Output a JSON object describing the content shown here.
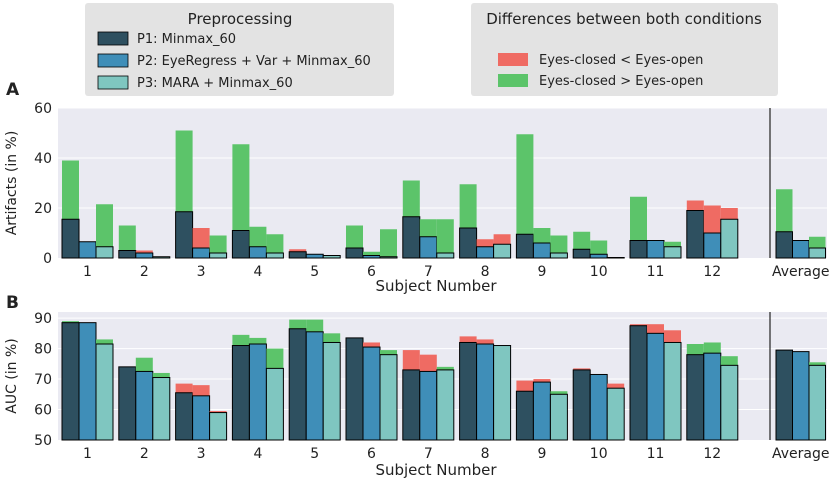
{
  "legend_preprocessing": {
    "title": "Preprocessing",
    "items": [
      {
        "label": "P1:  Minmax_60",
        "color": "#2e5060"
      },
      {
        "label": "P2:  EyeRegress + Var + Minmax_60",
        "color": "#3f8eb8"
      },
      {
        "label": "P3:  MARA + Minmax_60",
        "color": "#7fc6c0"
      }
    ]
  },
  "legend_differences": {
    "title": "Differences between both conditions",
    "items": [
      {
        "label": "Eyes-closed < Eyes-open",
        "color": "#ef6b63"
      },
      {
        "label": "Eyes-closed > Eyes-open",
        "color": "#5cc46a"
      }
    ]
  },
  "chart_data": [
    {
      "type": "bar",
      "panel": "A",
      "ylabel": "Artifacts (in %)",
      "xlabel": "Subject Number",
      "ylim": [
        0,
        60
      ],
      "yticks": [
        0,
        20,
        40,
        60
      ],
      "categories": [
        "1",
        "2",
        "3",
        "4",
        "5",
        "6",
        "7",
        "8",
        "9",
        "10",
        "11",
        "12",
        "Average"
      ],
      "series": [
        {
          "name": "P1",
          "low": [
            15.5,
            3,
            18.5,
            11,
            2.5,
            4,
            16.5,
            12,
            9.5,
            3.5,
            7,
            19
          ],
          "high": [
            39,
            13,
            51,
            45.5,
            3.5,
            13,
            31,
            29.5,
            49.5,
            10.5,
            24.5,
            23
          ],
          "diff": [
            "green",
            "green",
            "green",
            "green",
            "red",
            "green",
            "green",
            "green",
            "green",
            "green",
            "green",
            "red"
          ],
          "avg": [
            10.5,
            27.5,
            "green"
          ]
        },
        {
          "name": "P2",
          "low": [
            6.5,
            2,
            4,
            4.5,
            1.5,
            1,
            8.5,
            4.5,
            6,
            1.5,
            7,
            10
          ],
          "high": [
            6.5,
            3,
            12,
            12.5,
            1.5,
            2.5,
            15.5,
            7.5,
            12,
            7,
            7,
            21
          ],
          "diff": [
            "none",
            "red",
            "red",
            "green",
            "none",
            "green",
            "green",
            "red",
            "green",
            "green",
            "none",
            "red"
          ],
          "avg": [
            7,
            7,
            "none"
          ]
        },
        {
          "name": "P3",
          "low": [
            4.5,
            0.5,
            2,
            2,
            1,
            0.5,
            2,
            5.5,
            2,
            0.2,
            4.5,
            15.5
          ],
          "high": [
            21.5,
            0.5,
            9,
            9.5,
            1,
            11.5,
            15.5,
            9.5,
            9,
            0.2,
            6.5,
            20
          ],
          "diff": [
            "green",
            "none",
            "green",
            "green",
            "none",
            "green",
            "green",
            "red",
            "green",
            "none",
            "green",
            "red"
          ],
          "avg": [
            4,
            8.5,
            "green"
          ]
        }
      ]
    },
    {
      "type": "bar",
      "panel": "B",
      "ylabel": "AUC (in %)",
      "xlabel": "Subject Number",
      "ylim": [
        50,
        92
      ],
      "yticks": [
        50,
        60,
        70,
        80,
        90
      ],
      "categories": [
        "1",
        "2",
        "3",
        "4",
        "5",
        "6",
        "7",
        "8",
        "9",
        "10",
        "11",
        "12",
        "Average"
      ],
      "series": [
        {
          "name": "P1",
          "low": [
            88.5,
            74,
            65.5,
            81,
            86.5,
            83.5,
            73,
            82,
            66,
            73,
            87.5,
            78
          ],
          "high": [
            89,
            74,
            68.5,
            84.5,
            89.5,
            83.5,
            79.5,
            84,
            69.5,
            73.5,
            88,
            81.5
          ],
          "diff": [
            "green",
            "none",
            "red",
            "green",
            "green",
            "none",
            "red",
            "red",
            "red",
            "red",
            "red",
            "green"
          ],
          "avg": [
            79.5,
            79.5,
            "none"
          ]
        },
        {
          "name": "P2",
          "low": [
            88.5,
            72.5,
            64.5,
            81.5,
            85.5,
            80.5,
            72.5,
            81.5,
            69,
            71.5,
            85,
            78.5
          ],
          "high": [
            88.5,
            77,
            68,
            83.5,
            89.5,
            82,
            78,
            83,
            70,
            71.5,
            88,
            82
          ],
          "diff": [
            "none",
            "green",
            "red",
            "green",
            "green",
            "red",
            "red",
            "red",
            "red",
            "none",
            "red",
            "green"
          ],
          "avg": [
            79,
            79,
            "none"
          ]
        },
        {
          "name": "P3",
          "low": [
            81.5,
            70.5,
            59,
            73.5,
            82,
            78,
            73,
            81,
            65,
            67,
            82,
            74.5
          ],
          "high": [
            83,
            72,
            59.5,
            80,
            85,
            79.5,
            74,
            81,
            66,
            68.5,
            86,
            77.5
          ],
          "diff": [
            "green",
            "green",
            "red",
            "green",
            "green",
            "green",
            "green",
            "none",
            "green",
            "red",
            "red",
            "green"
          ],
          "avg": [
            74.5,
            75.5,
            "green"
          ]
        }
      ]
    }
  ],
  "colors": {
    "p1": "#2e5060",
    "p2": "#3f8eb8",
    "p3": "#7fc6c0",
    "red": "#ef6b63",
    "green": "#5cc46a",
    "plot_bg": "#eaeaf2",
    "legend_bg": "#e3e3e3",
    "grid": "#ffffff"
  }
}
